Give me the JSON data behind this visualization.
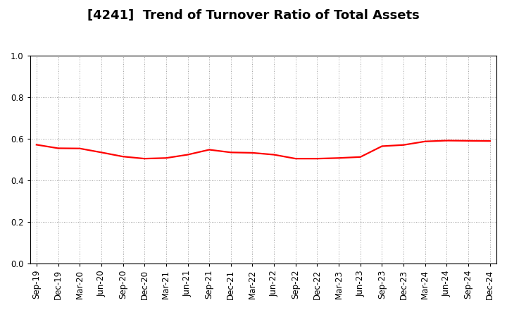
{
  "title": "[4241]  Trend of Turnover Ratio of Total Assets",
  "x_labels": [
    "Sep-19",
    "Dec-19",
    "Mar-20",
    "Jun-20",
    "Sep-20",
    "Dec-20",
    "Mar-21",
    "Jun-21",
    "Sep-21",
    "Dec-21",
    "Mar-22",
    "Jun-22",
    "Sep-22",
    "Dec-22",
    "Mar-23",
    "Jun-23",
    "Sep-23",
    "Dec-23",
    "Mar-24",
    "Jun-24",
    "Sep-24",
    "Dec-24"
  ],
  "y_values": [
    0.572,
    0.555,
    0.554,
    0.535,
    0.515,
    0.505,
    0.508,
    0.524,
    0.548,
    0.535,
    0.533,
    0.524,
    0.505,
    0.505,
    0.508,
    0.513,
    0.565,
    0.571,
    0.588,
    0.592,
    0.591,
    0.59
  ],
  "line_color": "#ff0000",
  "ylim": [
    0.0,
    1.0
  ],
  "yticks": [
    0.0,
    0.2,
    0.4,
    0.6,
    0.8,
    1.0
  ],
  "grid_color": "#888888",
  "background_color": "#ffffff",
  "title_fontsize": 13,
  "tick_fontsize": 8.5,
  "line_width": 1.6
}
